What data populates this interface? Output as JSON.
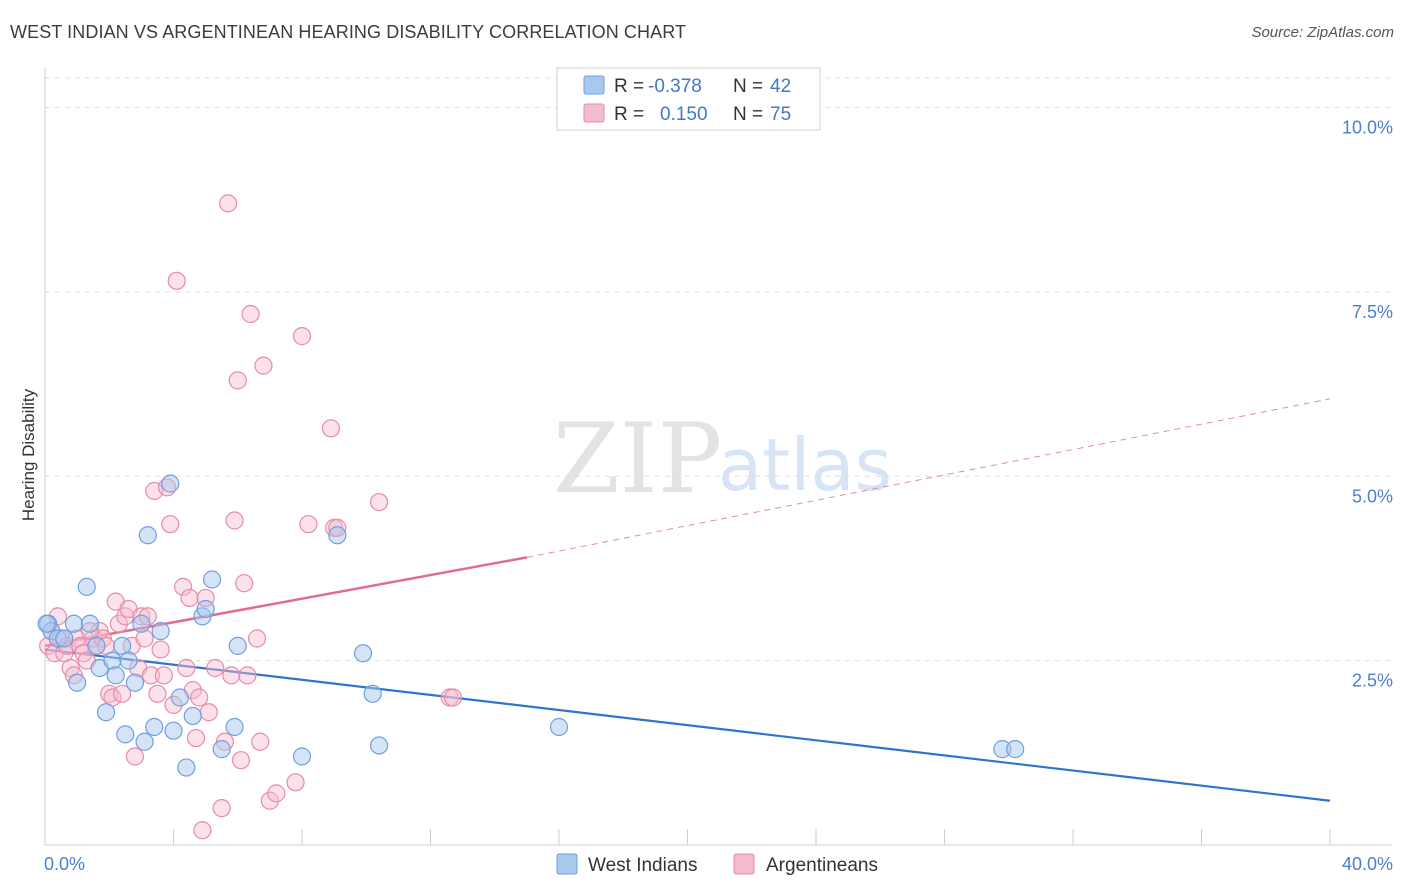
{
  "title": "WEST INDIAN VS ARGENTINEAN HEARING DISABILITY CORRELATION CHART",
  "source": "Source: ZipAtlas.com",
  "watermark": {
    "zip": "ZIP",
    "atlas": "atlas"
  },
  "legend": {
    "rows": [
      {
        "r_label": "R =",
        "r_value": "-0.378",
        "n_label": "N =",
        "n_value": "42"
      },
      {
        "r_label": "R =",
        "r_value": "0.150",
        "n_label": "N =",
        "n_value": "75"
      }
    ]
  },
  "colors": {
    "blue_fill": "#a9c8ee",
    "blue_stroke": "#6f9fe0",
    "blue_line": "#2f74d0",
    "pink_fill": "#f5bcd0",
    "pink_stroke": "#e88aa8",
    "pink_line": "#e06c96",
    "grid": "#dddddd",
    "axis_text": "#4a7fd0"
  },
  "chart_data": {
    "type": "scatter",
    "title": "WEST INDIAN VS ARGENTINEAN HEARING DISABILITY CORRELATION CHART",
    "xlabel": "",
    "ylabel": "Hearing Disability",
    "xlim": [
      0,
      40
    ],
    "ylim": [
      0,
      10.4
    ],
    "x_tick_labels": [
      "0.0%",
      "40.0%"
    ],
    "y_ticks": [
      2.5,
      5.0,
      7.5,
      10.0
    ],
    "y_tick_labels": [
      "2.5%",
      "5.0%",
      "7.5%",
      "10.0%"
    ],
    "grid": true,
    "legend_position": "top-center",
    "series": [
      {
        "name": "West Indians",
        "color": "blue",
        "points": [
          [
            0.1,
            3.0
          ],
          [
            0.2,
            2.9
          ],
          [
            0.4,
            2.8
          ],
          [
            0.6,
            2.8
          ],
          [
            0.9,
            3.0
          ],
          [
            1.0,
            2.2
          ],
          [
            1.3,
            3.5
          ],
          [
            1.4,
            3.0
          ],
          [
            1.6,
            2.7
          ],
          [
            1.7,
            2.4
          ],
          [
            1.9,
            1.8
          ],
          [
            2.1,
            2.5
          ],
          [
            2.2,
            2.3
          ],
          [
            2.4,
            2.7
          ],
          [
            2.5,
            1.5
          ],
          [
            2.6,
            2.5
          ],
          [
            2.8,
            2.2
          ],
          [
            3.0,
            3.0
          ],
          [
            3.1,
            1.4
          ],
          [
            3.2,
            4.2
          ],
          [
            3.4,
            1.6
          ],
          [
            3.6,
            2.9
          ],
          [
            3.9,
            4.9
          ],
          [
            4.0,
            1.55
          ],
          [
            4.2,
            2.0
          ],
          [
            4.4,
            1.05
          ],
          [
            4.6,
            1.75
          ],
          [
            4.9,
            3.1
          ],
          [
            5.0,
            3.2
          ],
          [
            5.2,
            3.6
          ],
          [
            5.5,
            1.3
          ],
          [
            5.9,
            1.6
          ],
          [
            6.0,
            2.7
          ],
          [
            8.0,
            1.2
          ],
          [
            9.1,
            4.2
          ],
          [
            9.9,
            2.6
          ],
          [
            10.2,
            2.05
          ],
          [
            10.4,
            1.35
          ],
          [
            16.0,
            1.6
          ],
          [
            29.8,
            1.3
          ],
          [
            30.2,
            1.3
          ],
          [
            0.05,
            3.0
          ]
        ],
        "trend": {
          "x": [
            0,
            40
          ],
          "y": [
            2.65,
            0.6
          ],
          "style": "solid"
        }
      },
      {
        "name": "Argentineans",
        "color": "pink",
        "points": [
          [
            0.1,
            2.7
          ],
          [
            0.2,
            2.9
          ],
          [
            0.3,
            2.6
          ],
          [
            0.5,
            2.8
          ],
          [
            0.6,
            2.6
          ],
          [
            0.7,
            2.7
          ],
          [
            0.8,
            2.4
          ],
          [
            0.9,
            2.3
          ],
          [
            1.0,
            2.8
          ],
          [
            1.1,
            2.7
          ],
          [
            1.2,
            2.6
          ],
          [
            1.3,
            2.5
          ],
          [
            1.5,
            2.8
          ],
          [
            1.6,
            2.7
          ],
          [
            1.7,
            2.9
          ],
          [
            1.8,
            2.8
          ],
          [
            1.9,
            2.7
          ],
          [
            2.0,
            2.05
          ],
          [
            2.1,
            2.0
          ],
          [
            2.2,
            3.3
          ],
          [
            2.3,
            3.0
          ],
          [
            2.4,
            2.05
          ],
          [
            2.5,
            3.1
          ],
          [
            2.6,
            3.2
          ],
          [
            2.7,
            2.7
          ],
          [
            2.8,
            1.2
          ],
          [
            2.9,
            2.4
          ],
          [
            3.0,
            3.1
          ],
          [
            3.1,
            2.8
          ],
          [
            3.2,
            3.1
          ],
          [
            3.3,
            2.3
          ],
          [
            3.4,
            4.8
          ],
          [
            3.5,
            2.05
          ],
          [
            3.6,
            2.65
          ],
          [
            3.7,
            2.3
          ],
          [
            3.8,
            4.85
          ],
          [
            3.9,
            4.35
          ],
          [
            4.0,
            1.9
          ],
          [
            4.1,
            7.65
          ],
          [
            4.3,
            3.5
          ],
          [
            4.4,
            2.4
          ],
          [
            4.5,
            3.35
          ],
          [
            4.6,
            2.1
          ],
          [
            4.7,
            1.45
          ],
          [
            4.8,
            2.0
          ],
          [
            4.9,
            0.2
          ],
          [
            5.0,
            3.35
          ],
          [
            5.1,
            1.8
          ],
          [
            5.3,
            2.4
          ],
          [
            5.5,
            0.5
          ],
          [
            5.6,
            1.4
          ],
          [
            5.7,
            8.7
          ],
          [
            5.8,
            2.3
          ],
          [
            5.9,
            4.4
          ],
          [
            6.0,
            6.3
          ],
          [
            6.1,
            1.15
          ],
          [
            6.2,
            3.55
          ],
          [
            6.3,
            2.3
          ],
          [
            6.4,
            7.2
          ],
          [
            6.6,
            2.8
          ],
          [
            6.7,
            1.4
          ],
          [
            6.8,
            6.5
          ],
          [
            7.0,
            0.6
          ],
          [
            7.2,
            0.7
          ],
          [
            7.8,
            0.85
          ],
          [
            8.0,
            6.9
          ],
          [
            8.2,
            4.35
          ],
          [
            8.9,
            5.65
          ],
          [
            9.0,
            4.3
          ],
          [
            9.1,
            4.3
          ],
          [
            10.4,
            4.65
          ],
          [
            12.6,
            2.0
          ],
          [
            12.7,
            2.0
          ],
          [
            0.4,
            3.1
          ],
          [
            1.4,
            2.9
          ]
        ],
        "trend": {
          "x": [
            0,
            15
          ],
          "y": [
            2.7,
            3.9
          ],
          "style": "solid",
          "extended": {
            "x": [
              15,
              40
            ],
            "y": [
              3.9,
              6.05
            ],
            "style": "dashed"
          }
        }
      }
    ]
  },
  "bottom_legend": [
    {
      "label": "West Indians",
      "color": "blue"
    },
    {
      "label": "Argentineans",
      "color": "pink"
    }
  ]
}
